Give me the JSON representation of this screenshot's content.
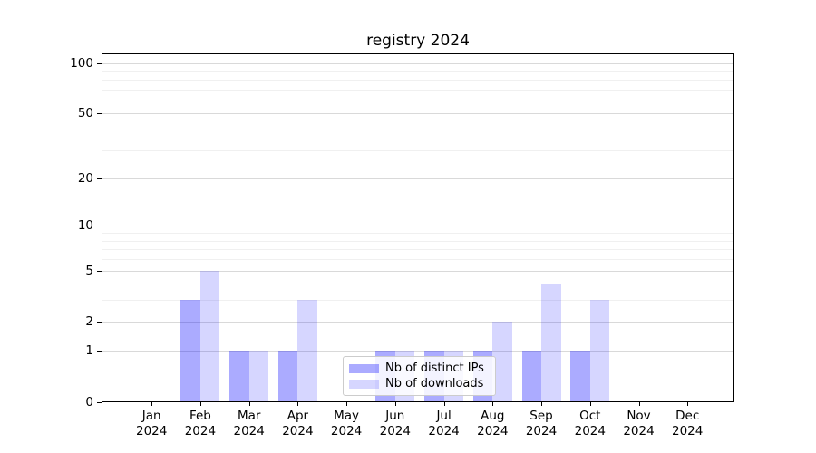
{
  "chart_data": {
    "type": "bar",
    "title": "registry 2024",
    "categories": [
      "Jan",
      "Feb",
      "Mar",
      "Apr",
      "May",
      "Jun",
      "Jul",
      "Aug",
      "Sep",
      "Oct",
      "Nov",
      "Dec"
    ],
    "x_year_label": "2024",
    "series": [
      {
        "name": "Nb of distinct IPs",
        "color": "rgba(0,0,255,0.33)",
        "values": [
          0,
          3,
          1,
          1,
          0,
          1,
          1,
          1,
          1,
          1,
          0,
          0
        ]
      },
      {
        "name": "Nb of downloads",
        "color": "rgba(0,0,255,0.16)",
        "values": [
          0,
          5,
          1,
          3,
          0,
          1,
          1,
          2,
          4,
          3,
          0,
          0
        ]
      }
    ],
    "y_axis": {
      "scale": "log1p",
      "ticks": [
        0,
        1,
        2,
        5,
        10,
        20,
        50,
        100
      ],
      "minor_gridlines": [
        3,
        4,
        6,
        7,
        8,
        9,
        30,
        40,
        60,
        70,
        80,
        90
      ],
      "ylim": [
        0,
        115
      ]
    },
    "legend_position": "lower-center",
    "grid": true,
    "colors": {
      "axis": "#000000",
      "grid_major": "#d9d9d9",
      "grid_minor": "#f0f0f0",
      "background": "#ffffff"
    }
  }
}
